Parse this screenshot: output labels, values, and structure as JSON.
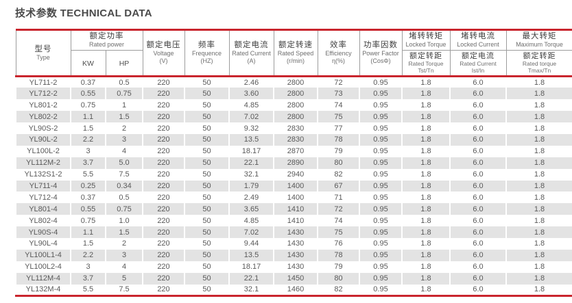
{
  "page": {
    "title": "技术参数 TECHNICAL DATA"
  },
  "colors": {
    "accent_red": "#c9252d",
    "row_stripe": "#e3e3e3",
    "header_border": "#9c9c9c",
    "text_dark": "#3f3f3f",
    "text_data": "#595959"
  },
  "table": {
    "columns": {
      "type": {
        "zh": "型号",
        "en": "Type"
      },
      "rated_power": {
        "zh": "额定功率",
        "en": "Rated power",
        "sub": [
          "KW",
          "HP"
        ]
      },
      "voltage": {
        "zh": "额定电压",
        "en": "Voltage",
        "unit": "(V)"
      },
      "frequency": {
        "zh": "频率",
        "en": "Frequence",
        "unit": "(HZ)"
      },
      "rated_current": {
        "zh": "额定电流",
        "en": "Rated Current",
        "unit": "(A)"
      },
      "rated_speed": {
        "zh": "额定转速",
        "en": "Rated Speed",
        "unit": "(r/min)"
      },
      "efficiency": {
        "zh": "效率",
        "en": "Efficiency",
        "unit": "η(%)"
      },
      "power_factor": {
        "zh": "功率因数",
        "en": "Power Factor",
        "unit": "(CosΦ)"
      },
      "locked_torque": {
        "zh": "堵转转矩",
        "en": "Locked Torque",
        "sub_zh": "额定转距",
        "sub_en": "Rated Torque",
        "sub_unit": "Tst/Tn"
      },
      "locked_current": {
        "zh": "堵转电流",
        "en": "Locked Current",
        "sub_zh": "额定电流",
        "sub_en": "Rated Current",
        "sub_unit": "Ist/In"
      },
      "max_torque": {
        "zh": "最大转矩",
        "en": "Maximum Torque",
        "sub_zh": "额定转距",
        "sub_en": "Rated torque",
        "sub_unit": "Tmax/Tn"
      }
    },
    "rows": [
      [
        "YL711-2",
        "0.37",
        "0.5",
        "220",
        "50",
        "2.46",
        "2800",
        "72",
        "0.95",
        "1.8",
        "6.0",
        "1.8"
      ],
      [
        "YL712-2",
        "0.55",
        "0.75",
        "220",
        "50",
        "3.60",
        "2800",
        "73",
        "0.95",
        "1.8",
        "6.0",
        "1.8"
      ],
      [
        "YL801-2",
        "0.75",
        "1",
        "220",
        "50",
        "4.85",
        "2800",
        "74",
        "0.95",
        "1.8",
        "6.0",
        "1.8"
      ],
      [
        "YL802-2",
        "1.1",
        "1.5",
        "220",
        "50",
        "7.02",
        "2800",
        "75",
        "0.95",
        "1.8",
        "6.0",
        "1.8"
      ],
      [
        "YL90S-2",
        "1.5",
        "2",
        "220",
        "50",
        "9.32",
        "2830",
        "77",
        "0.95",
        "1.8",
        "6.0",
        "1.8"
      ],
      [
        "YL90L-2",
        "2.2",
        "3",
        "220",
        "50",
        "13.5",
        "2830",
        "78",
        "0.95",
        "1.8",
        "6.0",
        "1.8"
      ],
      [
        "YL100L-2",
        "3",
        "4",
        "220",
        "50",
        "18.17",
        "2870",
        "79",
        "0.95",
        "1.8",
        "6.0",
        "1.8"
      ],
      [
        "YL112M-2",
        "3.7",
        "5.0",
        "220",
        "50",
        "22.1",
        "2890",
        "80",
        "0.95",
        "1.8",
        "6.0",
        "1.8"
      ],
      [
        "YL132S1-2",
        "5.5",
        "7.5",
        "220",
        "50",
        "32.1",
        "2940",
        "82",
        "0.95",
        "1.8",
        "6.0",
        "1.8"
      ],
      [
        "YL711-4",
        "0.25",
        "0.34",
        "220",
        "50",
        "1.79",
        "1400",
        "67",
        "0.95",
        "1.8",
        "6.0",
        "1.8"
      ],
      [
        "YL712-4",
        "0.37",
        "0.5",
        "220",
        "50",
        "2.49",
        "1400",
        "71",
        "0.95",
        "1.8",
        "6.0",
        "1.8"
      ],
      [
        "YL801-4",
        "0.55",
        "0.75",
        "220",
        "50",
        "3.65",
        "1410",
        "72",
        "0.95",
        "1.8",
        "6.0",
        "1.8"
      ],
      [
        "YL802-4",
        "0.75",
        "1.0",
        "220",
        "50",
        "4.85",
        "1410",
        "74",
        "0.95",
        "1.8",
        "6.0",
        "1.8"
      ],
      [
        "YL90S-4",
        "1.1",
        "1.5",
        "220",
        "50",
        "7.02",
        "1430",
        "75",
        "0.95",
        "1.8",
        "6.0",
        "1.8"
      ],
      [
        "YL90L-4",
        "1.5",
        "2",
        "220",
        "50",
        "9.44",
        "1430",
        "76",
        "0.95",
        "1.8",
        "6.0",
        "1.8"
      ],
      [
        "YL100L1-4",
        "2.2",
        "3",
        "220",
        "50",
        "13.5",
        "1430",
        "78",
        "0.95",
        "1.8",
        "6.0",
        "1.8"
      ],
      [
        "YL100L2-4",
        "3",
        "4",
        "220",
        "50",
        "18.17",
        "1430",
        "79",
        "0.95",
        "1.8",
        "6.0",
        "1.8"
      ],
      [
        "YL112M-4",
        "3.7",
        "5",
        "220",
        "50",
        "22.1",
        "1450",
        "80",
        "0.95",
        "1.8",
        "6.0",
        "1.8"
      ],
      [
        "YL132M-4",
        "5.5",
        "7.5",
        "220",
        "50",
        "32.1",
        "1460",
        "82",
        "0.95",
        "1.8",
        "6.0",
        "1.8"
      ]
    ]
  }
}
